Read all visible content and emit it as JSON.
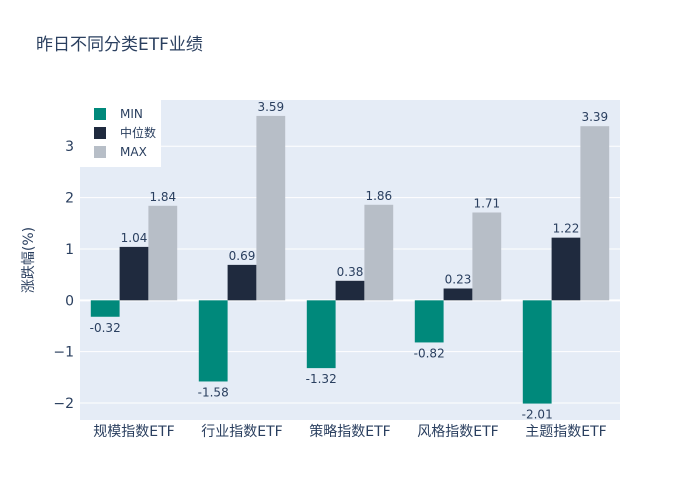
{
  "title": "昨日不同分类ETF业绩",
  "chart_data": {
    "type": "bar",
    "title": "昨日不同分类ETF业绩",
    "xlabel": "",
    "ylabel": "涨跌幅(%)",
    "categories": [
      "规模指数ETF",
      "行业指数ETF",
      "策略指数ETF",
      "风格指数ETF",
      "主题指数ETF"
    ],
    "series": [
      {
        "name": "MIN",
        "color": "#00897b",
        "values": [
          -0.32,
          -1.58,
          -1.32,
          -0.82,
          -2.01
        ]
      },
      {
        "name": "中位数",
        "color": "#1f2a3e",
        "values": [
          1.04,
          0.69,
          0.38,
          0.23,
          1.22
        ]
      },
      {
        "name": "MAX",
        "color": "#b7bec7",
        "values": [
          1.84,
          3.59,
          1.86,
          1.71,
          3.39
        ]
      }
    ],
    "ylim": [
      -2.33,
      3.9
    ],
    "yticks": [
      -2,
      -1,
      0,
      1,
      2,
      3
    ],
    "ytick_labels": [
      "−2",
      "−1",
      "0",
      "1",
      "2",
      "3"
    ],
    "legend_position": "top-left",
    "grid": true,
    "plot_bgcolor": "#e5ecf6"
  }
}
